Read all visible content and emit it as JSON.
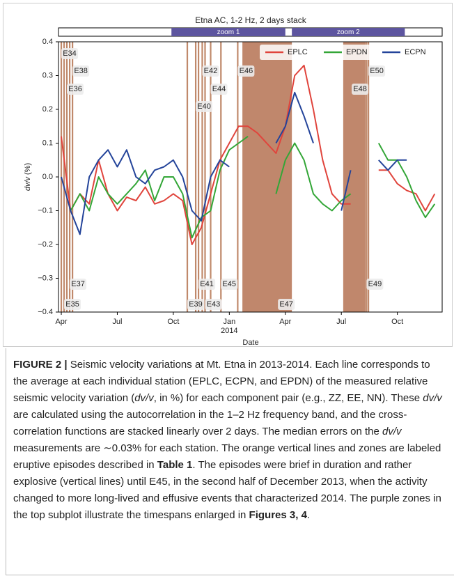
{
  "chart_data": {
    "type": "line",
    "title": "Etna AC, 1-2 Hz, 2 days stack",
    "xlabel": "Date",
    "ylabel_italic": "dv/v",
    "ylabel_rest": " (%)",
    "xlim": [
      -0.15,
      20.4
    ],
    "xticks": [
      {
        "value": 0,
        "label": "Apr"
      },
      {
        "value": 3,
        "label": "Jul"
      },
      {
        "value": 6,
        "label": "Oct"
      },
      {
        "value": 9,
        "label": "Jan"
      },
      {
        "value": 12,
        "label": "Apr"
      },
      {
        "value": 15,
        "label": "Jul"
      },
      {
        "value": 18,
        "label": "Oct"
      }
    ],
    "xtick_sublabel": "2014",
    "ylim": [
      -0.4,
      0.4
    ],
    "yticks": [
      {
        "value": -0.4,
        "label": "−0.4"
      },
      {
        "value": -0.3,
        "label": "−0.3"
      },
      {
        "value": -0.2,
        "label": "−0.2"
      },
      {
        "value": -0.1,
        "label": "−0.1"
      },
      {
        "value": 0,
        "label": "0.0"
      },
      0.1,
      0.2,
      0.3,
      0.4
    ],
    "legend": "upper right",
    "x": [
      0,
      0.5,
      1,
      1.5,
      2,
      2.5,
      3,
      3.5,
      4,
      4.5,
      5,
      5.5,
      6,
      6.5,
      7,
      7.5,
      8,
      8.5,
      9,
      9.5,
      10,
      10.5,
      11,
      11.5,
      12,
      12.5,
      13,
      13.5,
      14,
      14.5,
      15,
      15.5,
      16,
      16.5,
      17,
      17.5,
      18,
      18.5,
      19,
      19.5,
      20
    ],
    "series": [
      {
        "name": "EPLC",
        "color": "#e0443c",
        "values": [
          0.12,
          -0.1,
          -0.05,
          -0.08,
          0.05,
          -0.05,
          -0.1,
          -0.06,
          -0.07,
          -0.03,
          -0.08,
          -0.07,
          -0.05,
          -0.07,
          -0.2,
          -0.15,
          -0.05,
          0.05,
          0.1,
          0.15,
          0.15,
          0.13,
          0.1,
          0.07,
          0.15,
          0.3,
          0.33,
          0.2,
          0.05,
          -0.05,
          -0.08,
          -0.08,
          null,
          null,
          0.02,
          0.02,
          -0.02,
          -0.04,
          -0.05,
          -0.1,
          -0.05
        ]
      },
      {
        "name": "EPDN",
        "color": "#33a637",
        "values": [
          null,
          -0.1,
          -0.05,
          -0.1,
          0.0,
          -0.05,
          -0.08,
          -0.05,
          -0.02,
          0.02,
          -0.07,
          0.0,
          0.0,
          -0.05,
          -0.18,
          -0.12,
          -0.1,
          0.02,
          0.08,
          0.1,
          0.12,
          null,
          null,
          -0.05,
          0.05,
          0.1,
          0.05,
          -0.05,
          -0.08,
          -0.1,
          -0.07,
          -0.05,
          null,
          null,
          0.1,
          0.05,
          0.05,
          0.0,
          -0.07,
          -0.12,
          -0.08
        ]
      },
      {
        "name": "ECPN",
        "color": "#24449a",
        "values": [
          0.0,
          -0.1,
          -0.17,
          0.0,
          0.05,
          0.08,
          0.03,
          0.08,
          0.0,
          -0.02,
          0.02,
          0.03,
          0.05,
          0.0,
          -0.1,
          -0.13,
          0.0,
          0.05,
          0.03,
          null,
          null,
          null,
          null,
          0.1,
          0.15,
          0.25,
          0.18,
          0.1,
          null,
          null,
          -0.1,
          0.02,
          null,
          null,
          0.05,
          0.02,
          0.05,
          0.05,
          null,
          null,
          null
        ]
      }
    ],
    "events": [
      {
        "label": "E34",
        "x": 0.0
      },
      {
        "label": "E35",
        "x": 0.15
      },
      {
        "label": "E36",
        "x": 0.3
      },
      {
        "label": "E37",
        "x": 0.45
      },
      {
        "label": "E38",
        "x": 0.6
      },
      {
        "label": "E39",
        "x": 6.75
      },
      {
        "label": "E40",
        "x": 7.2
      },
      {
        "label": "E41",
        "x": 7.35
      },
      {
        "label": "E42",
        "x": 7.55
      },
      {
        "label": "E43",
        "x": 7.7
      },
      {
        "label": "E44",
        "x": 8.0
      },
      {
        "label": "E45",
        "x": 8.55
      },
      {
        "label": "E46",
        "x": 9.45
      },
      {
        "label": "E49",
        "x": 16.35
      },
      {
        "label": "E50",
        "x": 16.45
      }
    ],
    "spans": [
      {
        "label": "E47",
        "x0": 9.7,
        "x1": 12.35
      },
      {
        "label": "E48",
        "x0": 15.1,
        "x1": 16.3
      }
    ],
    "zooms": [
      {
        "label": "zoom 1",
        "x0": 5.9,
        "x1": 12.0
      },
      {
        "label": "zoom 2",
        "x0": 12.35,
        "x1": 18.4
      }
    ]
  },
  "caption": {
    "parts": [
      "FIGURE 2 |",
      " Seismic velocity variations at Mt. Etna in 2013-2014. Each line corresponds to the average at each individual station (EPLC, ECPN, and EPDN) of the measured relative seismic velocity variation (",
      "dv/v",
      ", in %) for each component pair (e.g., ZZ, EE, NN). These ",
      "dv/v",
      " are calculated using the autocorrelation in the 1–2 Hz frequency band, and the cross-correlation functions are stacked linearly over 2 days. The median errors on the ",
      "dv/v",
      " measurements are ∼0.03% for each station. The orange vertical lines and zones are labeled eruptive episodes described in ",
      "Table 1",
      ". The episodes were brief in duration and rather explosive (vertical lines) until E45, in the second half of December 2013, when the activity changed to more long-lived and effusive events that characterized 2014. The purple zones in the top subplot illustrate the timespans enlarged in ",
      "Figures 3, 4",
      "."
    ]
  }
}
